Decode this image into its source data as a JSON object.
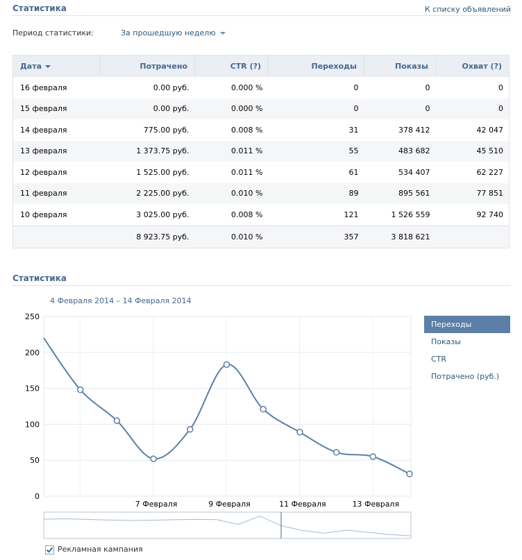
{
  "header": {
    "title": "Статистика",
    "back_link": "К списку объявлений"
  },
  "period": {
    "label": "Период статистики:",
    "selected": "За прошедшую неделю"
  },
  "table": {
    "columns": [
      "Дата",
      "Потрачено",
      "CTR (?)",
      "Переходы",
      "Показы",
      "Охват (?)"
    ],
    "rows": [
      [
        "16 февраля",
        "0.00 руб.",
        "0.000 %",
        "0",
        "0",
        "0"
      ],
      [
        "15 февраля",
        "0.00 руб.",
        "0.000 %",
        "0",
        "0",
        "0"
      ],
      [
        "14 февраля",
        "775.00 руб.",
        "0.008 %",
        "31",
        "378 412",
        "42 047"
      ],
      [
        "13 февраля",
        "1 373.75 руб.",
        "0.011 %",
        "55",
        "483 682",
        "45 510"
      ],
      [
        "12 февраля",
        "1 525.00 руб.",
        "0.011 %",
        "61",
        "534 407",
        "62 227"
      ],
      [
        "11 февраля",
        "2 225.00 руб.",
        "0.010 %",
        "89",
        "895 561",
        "77 851"
      ],
      [
        "10 февраля",
        "3 025.00 руб.",
        "0.008 %",
        "121",
        "1 526 559",
        "92 740"
      ]
    ],
    "totals": [
      "",
      "8 923.75 руб.",
      "0.010 %",
      "357",
      "3 818 621",
      ""
    ]
  },
  "chart_section": {
    "title": "Статистика",
    "date_range": "4 Февраля 2014 – 14 Февраля 2014"
  },
  "legend": {
    "items": [
      "Переходы",
      "Показы",
      "CTR",
      "Потрачено (руб.)"
    ],
    "active": "Переходы"
  },
  "checkbox": {
    "label": "Рекламная кампания",
    "checked": true
  },
  "colors": {
    "line": "#5b7fa6",
    "active_legend": "#5b7fa6",
    "title": "#45688e"
  },
  "chart_data": {
    "type": "line",
    "x": [
      "4 Февраля",
      "5 Февраля",
      "6 Февраля",
      "7 Февраля",
      "8 Февраля",
      "9 Февраля",
      "10 Февраля",
      "11 Февраля",
      "12 Февраля",
      "13 Февраля",
      "14 Февраля"
    ],
    "series": [
      {
        "values": [
          220,
          148,
          105,
          52,
          93,
          183,
          121,
          89,
          61,
          55,
          31
        ]
      }
    ],
    "ylim": [
      0,
      250
    ],
    "yticks": [
      0,
      50,
      100,
      150,
      200,
      250
    ],
    "xtick_labels": [
      "7 Февраля",
      "9 Февраля",
      "11 Февраля",
      "13 Февраля"
    ],
    "grid": true
  }
}
